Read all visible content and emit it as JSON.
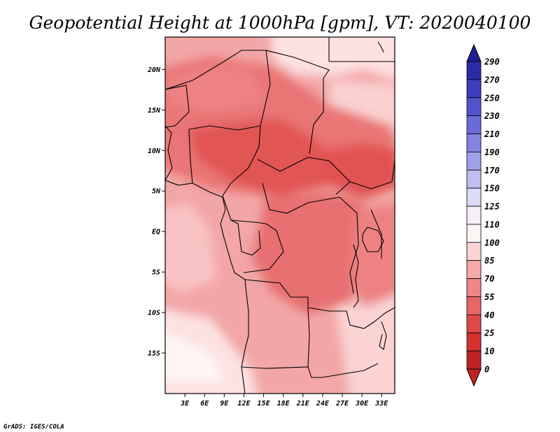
{
  "title": "Geopotential Height at 1000hPa [gpm], VT: 2020040100",
  "credit": "GrADS: IGES/COLA",
  "map": {
    "y_ticks": [
      "20N",
      "15N",
      "10N",
      "5N",
      "EQ",
      "5S",
      "10S",
      "15S"
    ],
    "x_ticks": [
      "3E",
      "6E",
      "9E",
      "12E",
      "15E",
      "18E",
      "21E",
      "24E",
      "27E",
      "30E",
      "33E"
    ],
    "lon_range": [
      0,
      35
    ],
    "lat_range": [
      -20,
      24
    ]
  },
  "colorbar": {
    "labels": [
      "290",
      "270",
      "250",
      "230",
      "210",
      "190",
      "170",
      "150",
      "125",
      "110",
      "100",
      "85",
      "70",
      "55",
      "40",
      "25",
      "10",
      "0"
    ],
    "colors": [
      "#1f1f96",
      "#2b2baa",
      "#3d3dbd",
      "#5252cc",
      "#6a6ad8",
      "#8484e2",
      "#a0a0ea",
      "#bfbff2",
      "#dcdcf8",
      "#f5f0f5",
      "#fdf4f4",
      "#fbd3d3",
      "#f6a9a9",
      "#ee8686",
      "#e76666",
      "#e04848",
      "#d63030",
      "#c02222"
    ]
  }
}
